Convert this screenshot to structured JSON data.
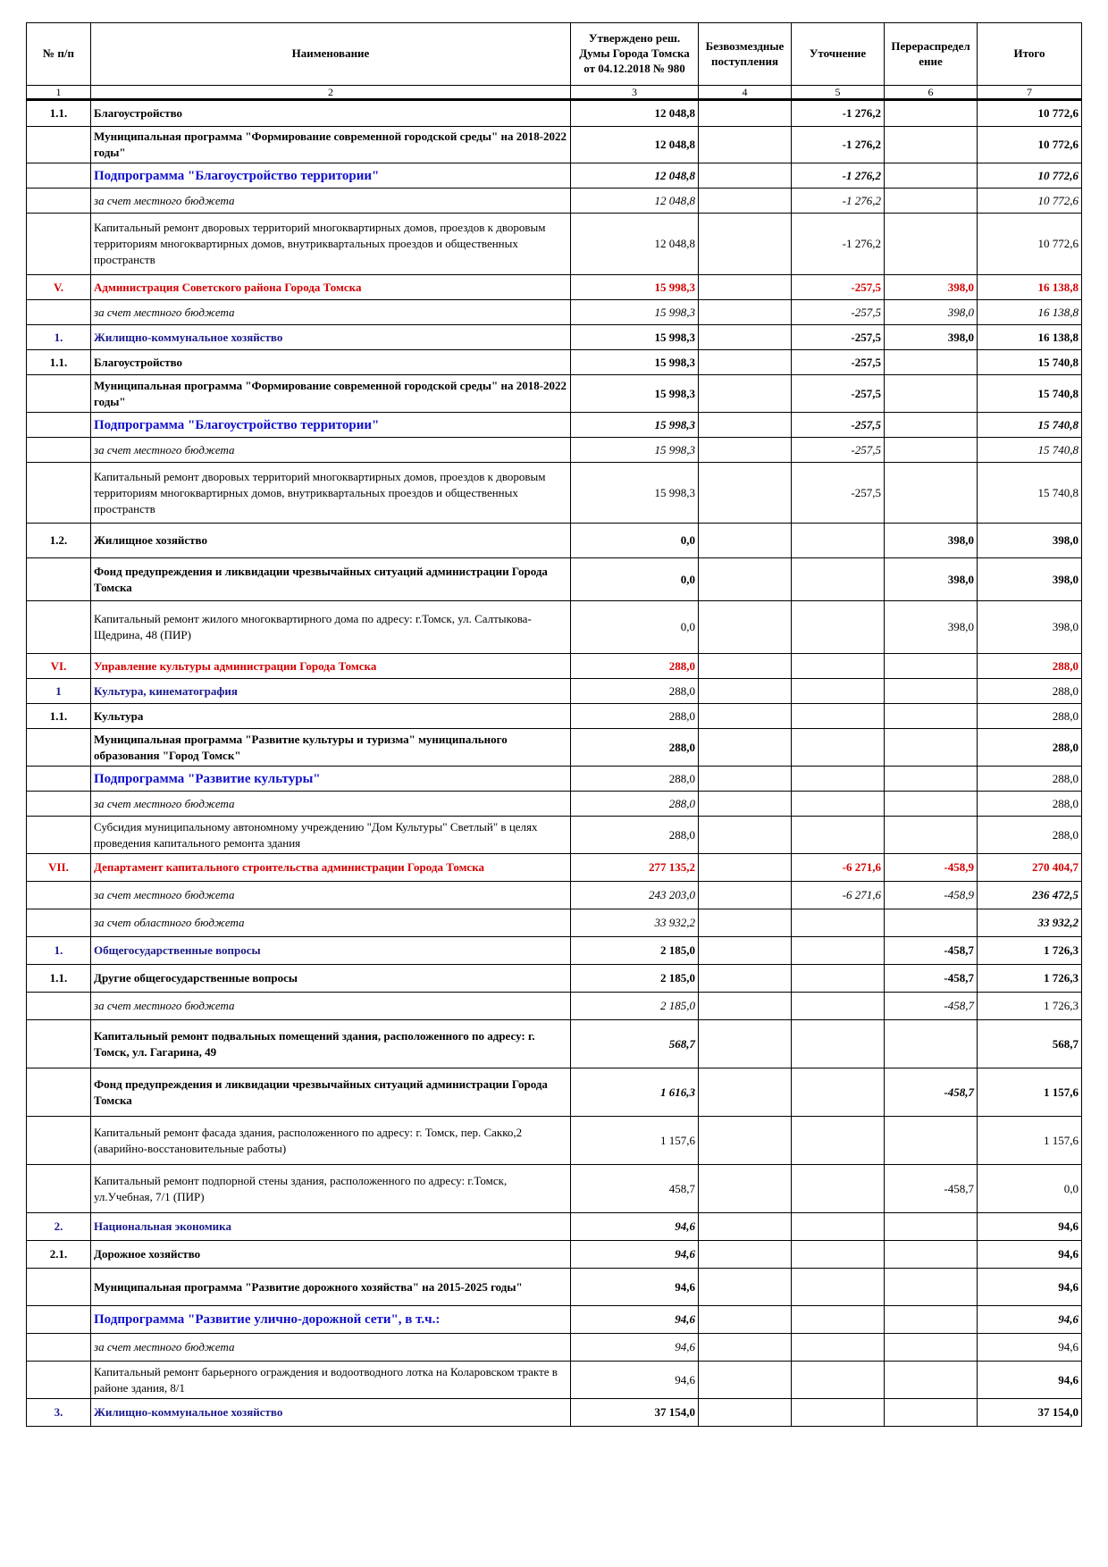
{
  "header": {
    "col_num": "№ п/п",
    "col_name": "Наименование",
    "col_approved": "Утверждено реш. Думы Города Томска от 04.12.2018 № 980",
    "col_free": "Безвозмездные поступления",
    "col_clarify": "Уточнение",
    "col_redistribute": "Перераспредел ение",
    "col_total": "Итого",
    "idx": [
      "1",
      "2",
      "3",
      "4",
      "5",
      "6",
      "7"
    ]
  },
  "rows": [
    {
      "num": "1.1.",
      "name": "Благоустройство",
      "approved": "12 048,8",
      "free": "",
      "clarify": "-1 276,2",
      "redistribute": "",
      "total": "10 772,6"
    },
    {
      "num": "",
      "name": "Муниципальная программа \"Формирование современной городской среды\" на 2018-2022 годы\"",
      "approved": "12 048,8",
      "free": "",
      "clarify": "-1 276,2",
      "redistribute": "",
      "total": "10 772,6"
    },
    {
      "num": "",
      "name": "Подпрограмма \"Благоустройство территории\"",
      "approved": "12 048,8",
      "free": "",
      "clarify": "-1 276,2",
      "redistribute": "",
      "total": "10 772,6"
    },
    {
      "num": "",
      "name": "за счет местного бюджета",
      "approved": "12 048,8",
      "free": "",
      "clarify": "-1 276,2",
      "redistribute": "",
      "total": "10 772,6"
    },
    {
      "num": "",
      "name": "Капитальный ремонт дворовых территорий многоквартирных домов, проездов к дворовым территориям многоквартирных домов, внутриквартальных проездов и общественных пространств",
      "approved": "12 048,8",
      "free": "",
      "clarify": "-1 276,2",
      "redistribute": "",
      "total": "10 772,6"
    },
    {
      "num": "V.",
      "name": "Администрация Советского района Города Томска",
      "approved": "15 998,3",
      "free": "",
      "clarify": "-257,5",
      "redistribute": "398,0",
      "total": "16 138,8"
    },
    {
      "num": "",
      "name": "за счет местного бюджета",
      "approved": "15 998,3",
      "free": "",
      "clarify": "-257,5",
      "redistribute": "398,0",
      "total": "16 138,8"
    },
    {
      "num": "1.",
      "name": "Жилищно-коммунальное хозяйство",
      "approved": "15 998,3",
      "free": "",
      "clarify": "-257,5",
      "redistribute": "398,0",
      "total": "16 138,8"
    },
    {
      "num": "1.1.",
      "name": "Благоустройство",
      "approved": "15 998,3",
      "free": "",
      "clarify": "-257,5",
      "redistribute": "",
      "total": "15 740,8"
    },
    {
      "num": "",
      "name": "Муниципальная программа \"Формирование современной городской среды\" на 2018-2022 годы\"",
      "approved": "15 998,3",
      "free": "",
      "clarify": "-257,5",
      "redistribute": "",
      "total": "15 740,8"
    },
    {
      "num": "",
      "name": "Подпрограмма \"Благоустройство территории\"",
      "approved": "15 998,3",
      "free": "",
      "clarify": "-257,5",
      "redistribute": "",
      "total": "15 740,8"
    },
    {
      "num": "",
      "name": "за счет местного бюджета",
      "approved": "15 998,3",
      "free": "",
      "clarify": "-257,5",
      "redistribute": "",
      "total": "15 740,8"
    },
    {
      "num": "",
      "name": "Капитальный ремонт дворовых территорий многоквартирных домов, проездов к дворовым территориям многоквартирных домов, внутриквартальных проездов и общественных пространств",
      "approved": "15 998,3",
      "free": "",
      "clarify": "-257,5",
      "redistribute": "",
      "total": "15 740,8"
    },
    {
      "num": "1.2.",
      "name": "Жилищное хозяйство",
      "approved": "0,0",
      "free": "",
      "clarify": "",
      "redistribute": "398,0",
      "total": "398,0"
    },
    {
      "num": "",
      "name": "Фонд предупреждения и ликвидации чрезвычайных ситуаций администрации Города Томска",
      "approved": "0,0",
      "free": "",
      "clarify": "",
      "redistribute": "398,0",
      "total": "398,0"
    },
    {
      "num": "",
      "name": "Капитальный ремонт жилого многоквартирного дома по адресу: г.Томск, ул. Салтыкова-Щедрина, 48 (ПИР)",
      "approved": "0,0",
      "free": "",
      "clarify": "",
      "redistribute": "398,0",
      "total": "398,0"
    },
    {
      "num": "VI.",
      "name": "Управление культуры администрации Города Томска",
      "approved": "288,0",
      "free": "",
      "clarify": "",
      "redistribute": "",
      "total": "288,0"
    },
    {
      "num": "1",
      "name": "Культура, кинематография",
      "approved": "288,0",
      "free": "",
      "clarify": "",
      "redistribute": "",
      "total": "288,0"
    },
    {
      "num": "1.1.",
      "name": "Культура",
      "approved": "288,0",
      "free": "",
      "clarify": "",
      "redistribute": "",
      "total": "288,0"
    },
    {
      "num": "",
      "name": "Муниципальная программа \"Развитие культуры и туризма\" муниципального образования \"Город Томск\"",
      "approved": "288,0",
      "free": "",
      "clarify": "",
      "redistribute": "",
      "total": "288,0"
    },
    {
      "num": "",
      "name": "Подпрограмма \"Развитие культуры\"",
      "approved": "288,0",
      "free": "",
      "clarify": "",
      "redistribute": "",
      "total": "288,0"
    },
    {
      "num": "",
      "name": "за счет местного бюджета",
      "approved": "288,0",
      "free": "",
      "clarify": "",
      "redistribute": "",
      "total": "288,0"
    },
    {
      "num": "",
      "name": "Субсидия муниципальному автономному учреждению \"Дом Культуры\" Светлый\" в целях проведения капитального ремонта здания",
      "approved": "288,0",
      "free": "",
      "clarify": "",
      "redistribute": "",
      "total": "288,0"
    },
    {
      "num": "VII.",
      "name": "Департамент капитального строительства администрации Города Томска",
      "approved": "277 135,2",
      "free": "",
      "clarify": "-6 271,6",
      "redistribute": "-458,9",
      "total": "270 404,7"
    },
    {
      "num": "",
      "name": "за счет местного бюджета",
      "approved": "243 203,0",
      "free": "",
      "clarify": "-6 271,6",
      "redistribute": "-458,9",
      "total": "236 472,5"
    },
    {
      "num": "",
      "name": "за счет областного бюджета",
      "approved": "33 932,2",
      "free": "",
      "clarify": "",
      "redistribute": "",
      "total": "33 932,2"
    },
    {
      "num": "1.",
      "name": "Общегосударственные вопросы",
      "approved": "2 185,0",
      "free": "",
      "clarify": "",
      "redistribute": "-458,7",
      "total": "1 726,3"
    },
    {
      "num": "1.1.",
      "name": "Другие общегосударственные вопросы",
      "approved": "2 185,0",
      "free": "",
      "clarify": "",
      "redistribute": "-458,7",
      "total": "1 726,3"
    },
    {
      "num": "",
      "name": "за счет местного бюджета",
      "approved": "2 185,0",
      "free": "",
      "clarify": "",
      "redistribute": "-458,7",
      "total": "1 726,3"
    },
    {
      "num": "",
      "name": "Капитальный ремонт подвальных помещений здания, расположенного по адресу: г. Томск, ул. Гагарина, 49",
      "approved": "568,7",
      "free": "",
      "clarify": "",
      "redistribute": "",
      "total": "568,7"
    },
    {
      "num": "",
      "name": "Фонд предупреждения и ликвидации чрезвычайных ситуаций администрации Города Томска",
      "approved": "1 616,3",
      "free": "",
      "clarify": "",
      "redistribute": "-458,7",
      "total": "1 157,6"
    },
    {
      "num": "",
      "name": "Капитальный ремонт фасада здания, расположенного по адресу: г. Томск, пер. Сакко,2 (аварийно-восстановительные работы)",
      "approved": "1 157,6",
      "free": "",
      "clarify": "",
      "redistribute": "",
      "total": "1 157,6"
    },
    {
      "num": "",
      "name": "Капитальный ремонт подпорной стены здания, расположенного по адресу: г.Томск, ул.Учебная, 7/1 (ПИР)",
      "approved": "458,7",
      "free": "",
      "clarify": "",
      "redistribute": "-458,7",
      "total": "0,0"
    },
    {
      "num": "2.",
      "name": "Национальная экономика",
      "approved": "94,6",
      "free": "",
      "clarify": "",
      "redistribute": "",
      "total": "94,6"
    },
    {
      "num": "2.1.",
      "name": "Дорожное хозяйство",
      "approved": "94,6",
      "free": "",
      "clarify": "",
      "redistribute": "",
      "total": "94,6"
    },
    {
      "num": "",
      "name": "Муниципальная программа \"Развитие дорожного хозяйства\" на 2015-2025 годы\"",
      "approved": "94,6",
      "free": "",
      "clarify": "",
      "redistribute": "",
      "total": "94,6"
    },
    {
      "num": "",
      "name": "Подпрограмма \"Развитие улично-дорожной сети\", в т.ч.:",
      "approved": "94,6",
      "free": "",
      "clarify": "",
      "redistribute": "",
      "total": "94,6"
    },
    {
      "num": "",
      "name": "за счет местного бюджета",
      "approved": "94,6",
      "free": "",
      "clarify": "",
      "redistribute": "",
      "total": "94,6"
    },
    {
      "num": "",
      "name": "Капитальный ремонт барьерного ограждения и водоотводного лотка на Коларовском тракте в районе здания, 8/1",
      "approved": "94,6",
      "free": "",
      "clarify": "",
      "redistribute": "",
      "total": "94,6"
    },
    {
      "num": "3.",
      "name": "Жилищно-коммунальное хозяйство",
      "approved": "37 154,0",
      "free": "",
      "clarify": "",
      "redistribute": "",
      "total": "37 154,0"
    }
  ]
}
